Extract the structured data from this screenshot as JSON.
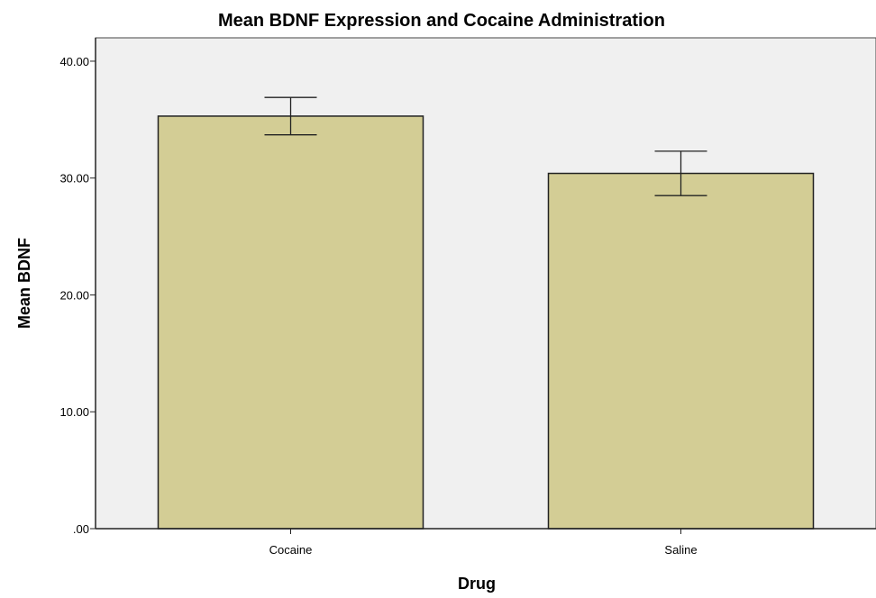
{
  "chart_data": {
    "type": "bar",
    "title": "Mean BDNF Expression and Cocaine Administration",
    "xlabel": "Drug",
    "ylabel": "Mean BDNF",
    "categories": [
      "Cocaine",
      "Saline"
    ],
    "values": [
      35.3,
      30.4
    ],
    "error_bars": [
      {
        "low": 33.7,
        "high": 36.9
      },
      {
        "low": 28.5,
        "high": 32.3
      }
    ],
    "ylim": [
      0,
      42
    ],
    "yticks": [
      0,
      10,
      20,
      30,
      40
    ],
    "ytick_labels": [
      ".00",
      "10.00",
      "20.00",
      "30.00",
      "40.00"
    ],
    "grid": false,
    "colors": {
      "bar_fill": "#d3cd95",
      "bar_stroke": "#222222",
      "plot_background": "#f0f0f0"
    }
  }
}
